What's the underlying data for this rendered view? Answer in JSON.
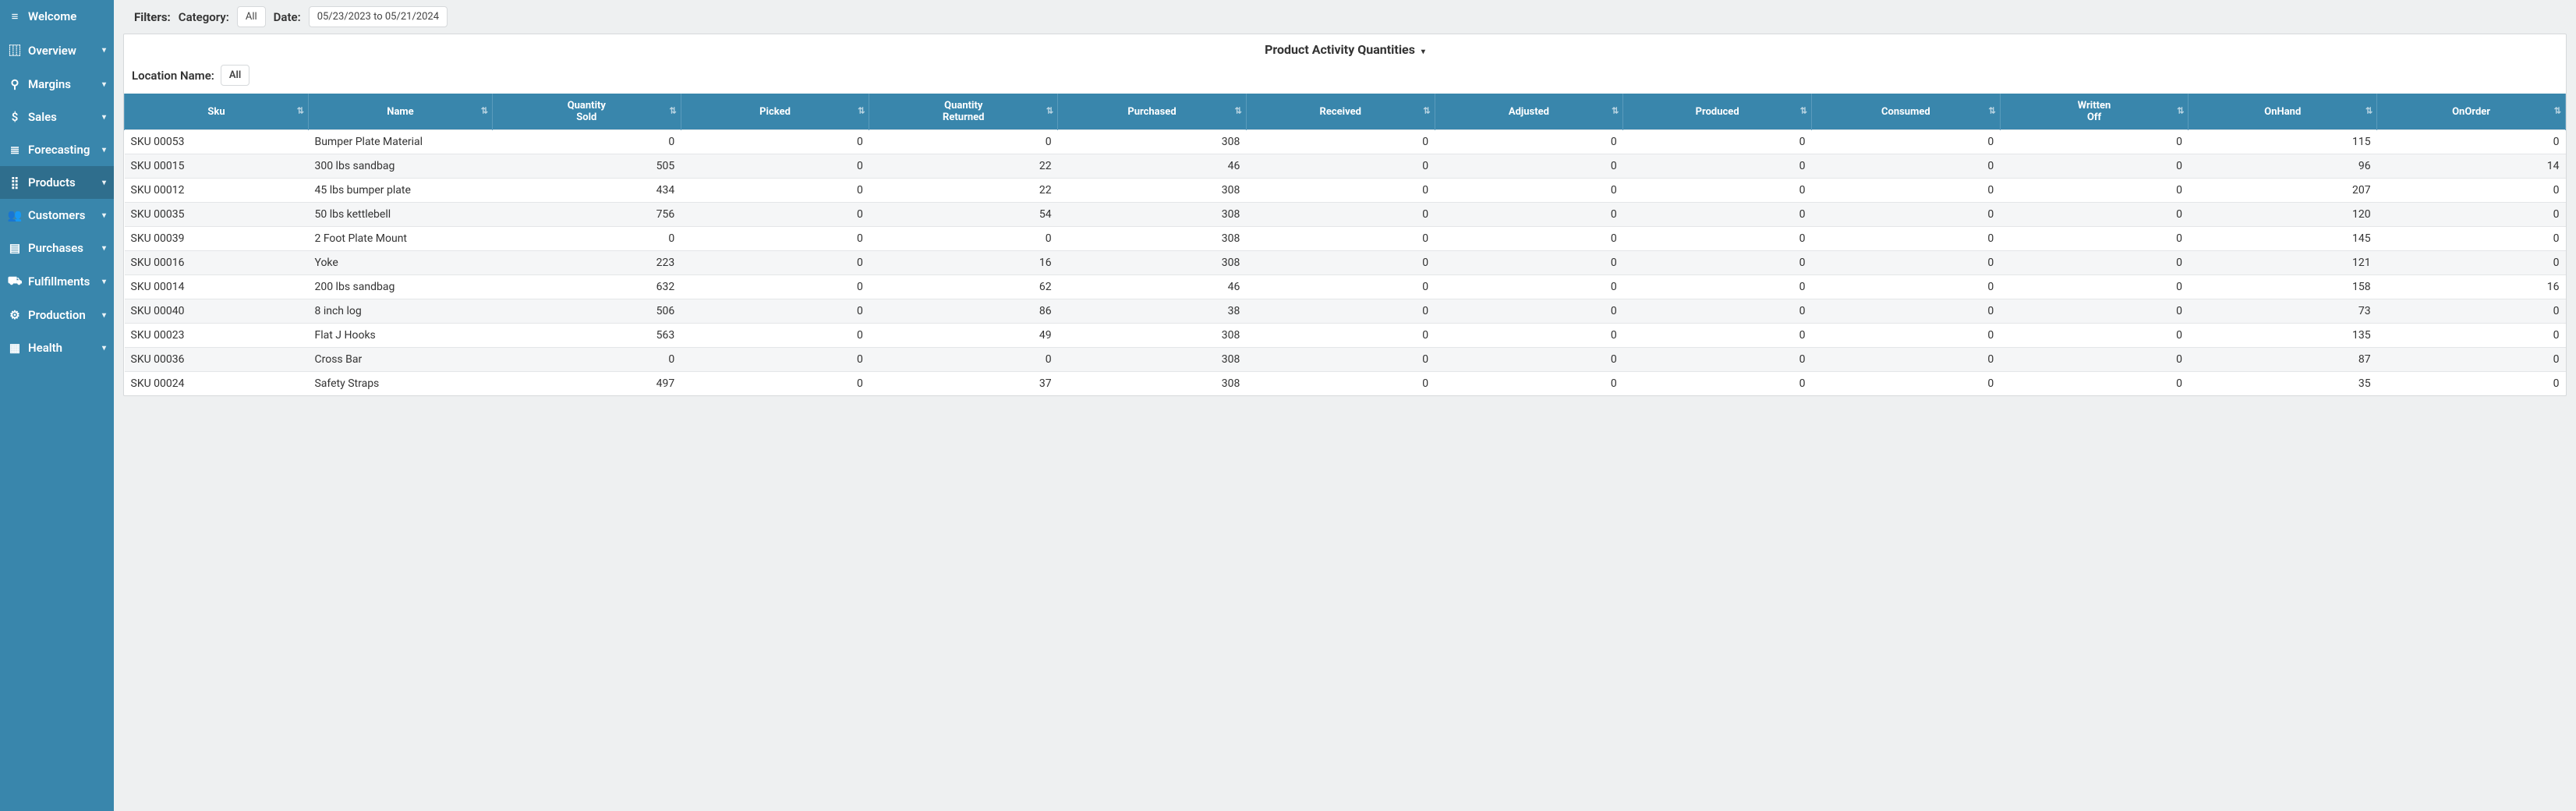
{
  "sidebar": {
    "items": [
      {
        "icon": "menu",
        "label": "Welcome",
        "caret": false
      },
      {
        "icon": "chart",
        "label": "Overview",
        "caret": true
      },
      {
        "icon": "search",
        "label": "Margins",
        "caret": true
      },
      {
        "icon": "dollar",
        "label": "Sales",
        "caret": true
      },
      {
        "icon": "db",
        "label": "Forecasting",
        "caret": true
      },
      {
        "icon": "sitemap",
        "label": "Products",
        "caret": true,
        "active": true
      },
      {
        "icon": "users",
        "label": "Customers",
        "caret": true
      },
      {
        "icon": "clipboard",
        "label": "Purchases",
        "caret": true
      },
      {
        "icon": "truck",
        "label": "Fulfillments",
        "caret": true
      },
      {
        "icon": "cog",
        "label": "Production",
        "caret": true
      },
      {
        "icon": "heart",
        "label": "Health",
        "caret": true
      }
    ]
  },
  "filters": {
    "label": "Filters:",
    "category_label": "Category:",
    "category_value": "All",
    "date_label": "Date:",
    "date_value": "05/23/2023 to 05/21/2024"
  },
  "panel": {
    "title": "Product Activity Quantities",
    "location_label": "Location Name:",
    "location_value": "All"
  },
  "table": {
    "columns": [
      "Sku",
      "Name",
      "Quantity Sold",
      "Picked",
      "Quantity Returned",
      "Purchased",
      "Received",
      "Adjusted",
      "Produced",
      "Consumed",
      "Written Off",
      "OnHand",
      "OnOrder"
    ],
    "rows": [
      [
        "SKU 00053",
        "Bumper Plate Material",
        "0",
        "0",
        "0",
        "308",
        "0",
        "0",
        "0",
        "0",
        "0",
        "115",
        "0"
      ],
      [
        "SKU 00015",
        "300 lbs sandbag",
        "505",
        "0",
        "22",
        "46",
        "0",
        "0",
        "0",
        "0",
        "0",
        "96",
        "14"
      ],
      [
        "SKU 00012",
        "45 lbs bumper plate",
        "434",
        "0",
        "22",
        "308",
        "0",
        "0",
        "0",
        "0",
        "0",
        "207",
        "0"
      ],
      [
        "SKU 00035",
        "50 lbs kettlebell",
        "756",
        "0",
        "54",
        "308",
        "0",
        "0",
        "0",
        "0",
        "0",
        "120",
        "0"
      ],
      [
        "SKU 00039",
        "2 Foot Plate Mount",
        "0",
        "0",
        "0",
        "308",
        "0",
        "0",
        "0",
        "0",
        "0",
        "145",
        "0"
      ],
      [
        "SKU 00016",
        "Yoke",
        "223",
        "0",
        "16",
        "308",
        "0",
        "0",
        "0",
        "0",
        "0",
        "121",
        "0"
      ],
      [
        "SKU 00014",
        "200 lbs sandbag",
        "632",
        "0",
        "62",
        "46",
        "0",
        "0",
        "0",
        "0",
        "0",
        "158",
        "16"
      ],
      [
        "SKU 00040",
        "8 inch log",
        "506",
        "0",
        "86",
        "38",
        "0",
        "0",
        "0",
        "0",
        "0",
        "73",
        "0"
      ],
      [
        "SKU 00023",
        "Flat J Hooks",
        "563",
        "0",
        "49",
        "308",
        "0",
        "0",
        "0",
        "0",
        "0",
        "135",
        "0"
      ],
      [
        "SKU 00036",
        "Cross Bar",
        "0",
        "0",
        "0",
        "308",
        "0",
        "0",
        "0",
        "0",
        "0",
        "87",
        "0"
      ],
      [
        "SKU 00024",
        "Safety Straps",
        "497",
        "0",
        "37",
        "308",
        "0",
        "0",
        "0",
        "0",
        "0",
        "35",
        "0"
      ]
    ]
  },
  "colors": {
    "sidebar_bg": "#3986ac",
    "sidebar_active": "#2f6e8d",
    "page_bg": "#eef0f1",
    "header_bg": "#3986ac",
    "row_alt": "#f5f6f7",
    "border": "#d6d9db"
  },
  "icons": {
    "menu": "≡",
    "chart": "⿲",
    "search": "⚲",
    "dollar": "$",
    "db": "≣",
    "sitemap": "⣿",
    "users": "👥",
    "clipboard": "▤",
    "truck": "⛟",
    "cog": "⚙",
    "heart": "▦",
    "caret": "▾",
    "sort": "⇅"
  }
}
